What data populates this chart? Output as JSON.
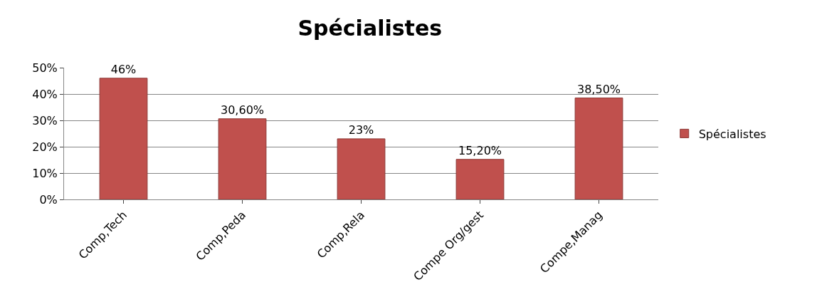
{
  "chart_data": {
    "type": "bar",
    "title": "Spécialistes",
    "categories": [
      "Comp,Tech",
      "Comp,Peda",
      "Comp,Rela",
      "Compe Org/gest",
      "Compe,Manag"
    ],
    "series": [
      {
        "name": "Spécialistes",
        "color": "#c0504d",
        "values": [
          46,
          30.6,
          23,
          15.2,
          38.5
        ],
        "value_labels": [
          "46%",
          "30,60%",
          "23%",
          "15,20%",
          "38,50%"
        ]
      }
    ],
    "ylim": [
      0,
      50
    ],
    "yticks": [
      {
        "value": 0,
        "label": "0%"
      },
      {
        "value": 10,
        "label": "10%"
      },
      {
        "value": 20,
        "label": "20%"
      },
      {
        "value": 30,
        "label": "30%"
      },
      {
        "value": 40,
        "label": "40%"
      },
      {
        "value": 50,
        "label": "50%"
      }
    ],
    "grid": "y",
    "legend": "right"
  }
}
